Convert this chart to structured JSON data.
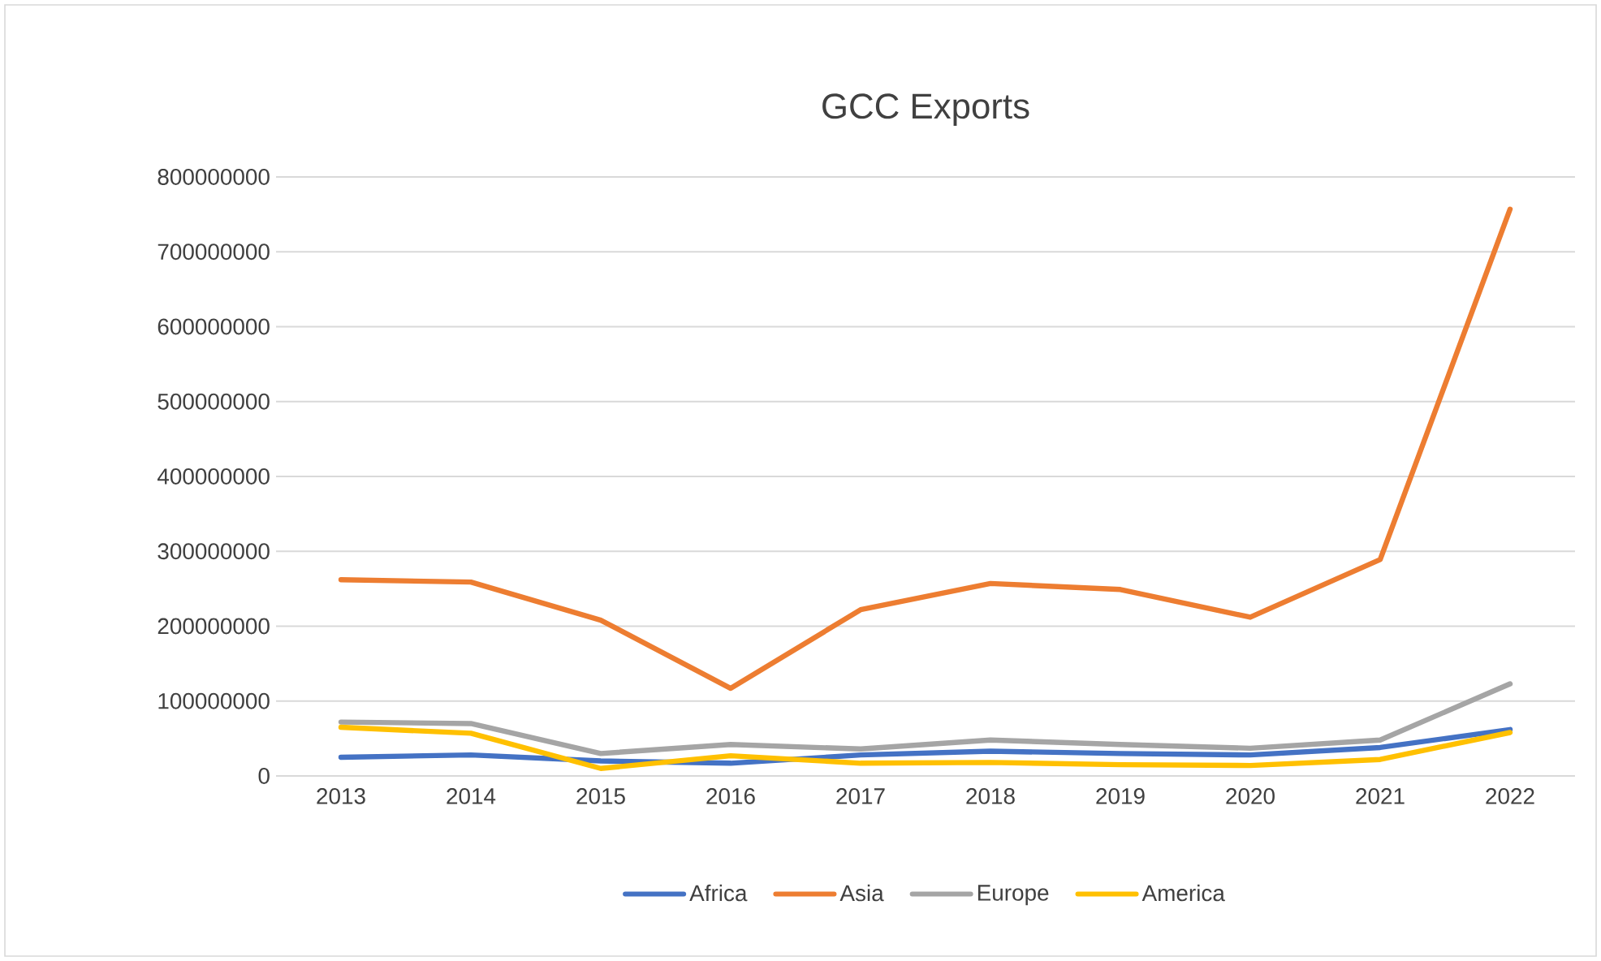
{
  "chart_data": {
    "type": "line",
    "title": "GCC Exports",
    "categories": [
      "2013",
      "2014",
      "2015",
      "2016",
      "2017",
      "2018",
      "2019",
      "2020",
      "2021",
      "2022"
    ],
    "series": [
      {
        "name": "Africa",
        "color": "#4472c4",
        "values": [
          25000000,
          28000000,
          20000000,
          17000000,
          28000000,
          33000000,
          30000000,
          28000000,
          38000000,
          62000000
        ]
      },
      {
        "name": "Asia",
        "color": "#ed7d31",
        "values": [
          262000000,
          259000000,
          208000000,
          117000000,
          222000000,
          257000000,
          249000000,
          212000000,
          289000000,
          757000000
        ]
      },
      {
        "name": "Europe",
        "color": "#a5a5a5",
        "values": [
          72000000,
          70000000,
          30000000,
          42000000,
          36000000,
          48000000,
          42000000,
          37000000,
          48000000,
          123000000
        ]
      },
      {
        "name": "America",
        "color": "#ffc000",
        "values": [
          65000000,
          57000000,
          10000000,
          27000000,
          17000000,
          18000000,
          15000000,
          14000000,
          22000000,
          58000000
        ]
      }
    ],
    "ylim": [
      0,
      800000000
    ],
    "yticks": [
      0,
      100000000,
      200000000,
      300000000,
      400000000,
      500000000,
      600000000,
      700000000,
      800000000
    ],
    "grid": "y",
    "legend": "bottom",
    "marker": "none",
    "line_style": "solid"
  }
}
